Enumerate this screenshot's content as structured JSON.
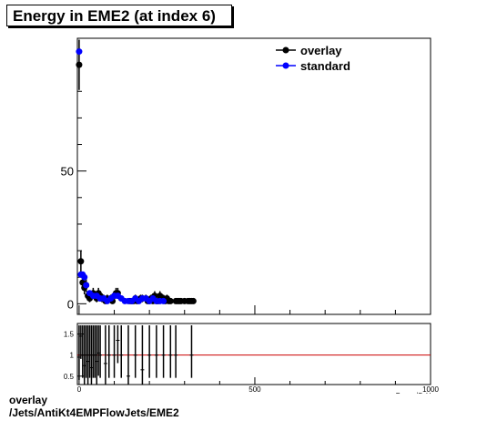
{
  "title": "Energy in EME2 (at index 6)",
  "footer": {
    "line1": "overlay",
    "line2": "/Jets/AntiKt4EMPFlowJets/EME2"
  },
  "chart_data": [
    {
      "type": "scatter",
      "title": "Energy in EME2 (at index 6)",
      "xlabel": "Energy/GeV",
      "ylabel": "",
      "xlim": [
        -5,
        1000
      ],
      "ylim": [
        -4,
        100
      ],
      "xticks": [
        0,
        500,
        1000
      ],
      "yticks": [
        0,
        50
      ],
      "legend": "top-right",
      "series": [
        {
          "name": "overlay",
          "color": "#000000",
          "x": [
            0,
            5,
            10,
            15,
            20,
            25,
            30,
            35,
            40,
            45,
            50,
            55,
            60,
            65,
            70,
            75,
            80,
            90,
            95,
            100,
            105,
            110,
            145,
            150,
            155,
            160,
            165,
            175,
            180,
            190,
            195,
            200,
            205,
            210,
            215,
            220,
            225,
            230,
            235,
            240,
            245,
            250,
            255,
            260,
            275,
            280,
            285,
            290,
            300,
            310,
            315,
            320,
            325
          ],
          "y": [
            90,
            16,
            8,
            6,
            7,
            3,
            2,
            3,
            4,
            3,
            2,
            4,
            3,
            2,
            2,
            1,
            2,
            2,
            1,
            3,
            4,
            4,
            1,
            1,
            1,
            2,
            1,
            2,
            2,
            2,
            1,
            1,
            2,
            1,
            3,
            1,
            1,
            3,
            2,
            2,
            1,
            2,
            1,
            1,
            1,
            1,
            1,
            1,
            1,
            1,
            1,
            1,
            1
          ]
        },
        {
          "name": "standard",
          "color": "#0000ff",
          "x": [
            0,
            5,
            10,
            15,
            20,
            30,
            40,
            50,
            60,
            70,
            80,
            90,
            100,
            110,
            120,
            130,
            140,
            150,
            160,
            170,
            180,
            190,
            200,
            210,
            220,
            230,
            240
          ],
          "y": [
            95,
            11,
            11,
            10,
            7,
            4,
            3,
            3,
            2,
            2,
            1,
            2,
            3,
            3,
            2,
            1,
            1,
            1,
            2,
            1,
            2,
            2,
            1,
            2,
            1,
            1,
            1
          ]
        }
      ]
    },
    {
      "type": "scatter",
      "title": "",
      "xlabel": "Energy/GeV",
      "ylabel": "",
      "xlim": [
        -5,
        1000
      ],
      "ylim": [
        0.3,
        1.75
      ],
      "xticks": [
        0,
        500,
        1000
      ],
      "yticks": [
        0.5,
        1,
        1.5
      ],
      "reference_line": 1,
      "series": [
        {
          "name": "ratio",
          "color": "#000000",
          "x": [
            0,
            5,
            10,
            15,
            20,
            25,
            30,
            35,
            40,
            45,
            50,
            55,
            60,
            75,
            85,
            100,
            110,
            120,
            140,
            160,
            180,
            200,
            220,
            240,
            260,
            275,
            320
          ],
          "y": [
            0.95,
            1.45,
            1.0,
            0.75,
            1.0,
            0.85,
            1.0,
            0.7,
            1.0,
            1.0,
            0.85,
            1.05,
            1.0,
            0.8,
            1.0,
            1.0,
            1.35,
            1.0,
            0.5,
            1.0,
            0.65,
            1.0,
            1.0,
            1.0,
            1.0,
            1.0,
            1.0
          ]
        }
      ]
    }
  ]
}
